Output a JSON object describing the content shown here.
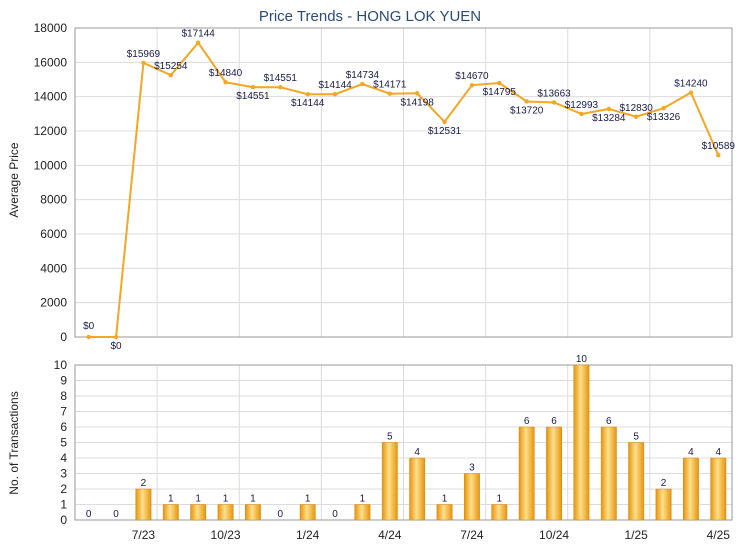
{
  "chart_data": [
    {
      "type": "line",
      "title": "Price Trends - HONG LOK YUEN",
      "ylabel": "Average Price",
      "ylim": [
        0,
        18000
      ],
      "yticks": [
        0,
        2000,
        4000,
        6000,
        8000,
        10000,
        12000,
        14000,
        16000,
        18000
      ],
      "grid": true,
      "color": "#f5a623",
      "points": [
        0,
        0,
        15969,
        15254,
        17144,
        14840,
        14551,
        14551,
        14144,
        14144,
        14734,
        14171,
        14198,
        12531,
        14670,
        14795,
        13720,
        13663,
        12993,
        13284,
        12830,
        13326,
        14240,
        10589
      ],
      "labels": [
        "$0",
        "$0",
        "$15969",
        "$15254",
        "$17144",
        "$14840",
        "$14551",
        "$14551",
        "$14144",
        "$14144",
        "$14734",
        "$14171",
        "$14198",
        "$12531",
        "$14670",
        "$14795",
        "$13720",
        "$13663",
        "$12993",
        "$13284",
        "$12830",
        "$13326",
        "$14240",
        "$10589"
      ]
    },
    {
      "type": "bar",
      "ylabel": "No. of Transactions",
      "ylim": [
        0,
        10
      ],
      "yticks": [
        0,
        1,
        2,
        3,
        4,
        5,
        6,
        7,
        8,
        9,
        10
      ],
      "grid": true,
      "color": "#f5a623",
      "values": [
        0,
        0,
        2,
        1,
        1,
        1,
        1,
        0,
        1,
        0,
        1,
        5,
        4,
        1,
        3,
        1,
        6,
        6,
        10,
        6,
        5,
        2,
        4,
        4
      ],
      "xtick_labels": [
        "7/23",
        "10/23",
        "1/24",
        "4/24",
        "7/24",
        "10/24",
        "1/25",
        "4/25"
      ]
    }
  ]
}
